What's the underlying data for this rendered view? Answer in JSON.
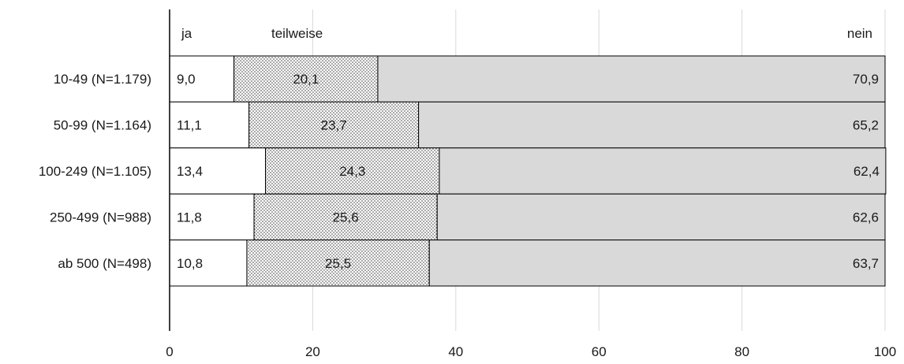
{
  "chart_data": {
    "type": "bar",
    "orientation": "horizontal",
    "stacked": true,
    "categories": [
      "10-49 (N=1.179)",
      "50-99 (N=1.164)",
      "100-249 (N=1.105)",
      "250-499 (N=988)",
      "ab 500 (N=498)"
    ],
    "series": [
      {
        "name": "ja",
        "values": [
          9.0,
          11.1,
          13.4,
          11.8,
          10.8
        ],
        "labels": [
          "9,0",
          "11,1",
          "13,4",
          "11,8",
          "10,8"
        ]
      },
      {
        "name": "teilweise",
        "values": [
          20.1,
          23.7,
          24.3,
          25.6,
          25.5
        ],
        "labels": [
          "20,1",
          "23,7",
          "24,3",
          "25,6",
          "25,5"
        ]
      },
      {
        "name": "nein",
        "values": [
          70.9,
          65.2,
          62.4,
          62.6,
          63.7
        ],
        "labels": [
          "70,9",
          "65,2",
          "62,4",
          "62,6",
          "63,7"
        ]
      }
    ],
    "x_ticks": [
      "0",
      "20",
      "40",
      "60",
      "80",
      "100"
    ],
    "xlim": [
      0,
      100
    ],
    "title": "",
    "xlabel": "",
    "ylabel": "",
    "grid": "vertical",
    "legend": "top, inside plot",
    "colors": {
      "ja": "#ffffff",
      "teilweise": "dotted",
      "nein": "#d9d9d9",
      "grid": "#d9d9d9",
      "axis": "#000000",
      "outline": "#000000"
    }
  }
}
